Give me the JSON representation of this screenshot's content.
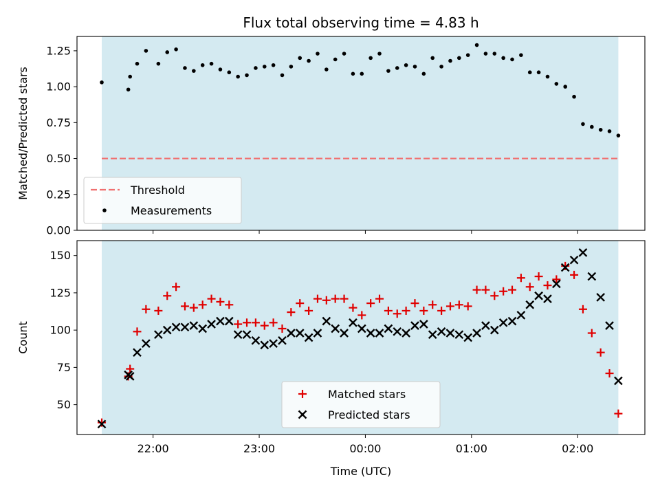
{
  "colors": {
    "span": "#d4eaf1",
    "threshold": "#f07070",
    "measurement": "#000000",
    "matched": "#e00000",
    "predicted": "#000000"
  },
  "chart_data": [
    {
      "type": "scatter",
      "title": "Flux total observing time = 4.83 h",
      "xlabel": "",
      "ylabel": "Matched/Predicted stars",
      "x_unit": "UTC",
      "xlim": [
        "21:17",
        "02:38"
      ],
      "ylim": [
        0,
        1.35
      ],
      "yticks": [
        0.0,
        0.25,
        0.5,
        0.75,
        1.0,
        1.25
      ],
      "ytick_labels": [
        "0.00",
        "0.25",
        "0.50",
        "0.75",
        "1.00",
        "1.25"
      ],
      "xticks": [
        "22:00",
        "23:00",
        "00:00",
        "01:00",
        "02:00"
      ],
      "grid": false,
      "legend": "lower-left",
      "observing_span": [
        "21:31",
        "02:23"
      ],
      "threshold": {
        "name": "Threshold",
        "value": 0.5
      },
      "series": [
        {
          "name": "Measurements",
          "x": [
            "21:31",
            "21:46",
            "21:47",
            "21:51",
            "21:56",
            "22:03",
            "22:08",
            "22:13",
            "22:18",
            "22:23",
            "22:28",
            "22:33",
            "22:38",
            "22:43",
            "22:48",
            "22:53",
            "22:58",
            "23:03",
            "23:08",
            "23:13",
            "23:18",
            "23:23",
            "23:28",
            "23:33",
            "23:38",
            "23:43",
            "23:48",
            "23:53",
            "23:58",
            "00:03",
            "00:08",
            "00:13",
            "00:18",
            "00:23",
            "00:28",
            "00:33",
            "00:38",
            "00:43",
            "00:48",
            "00:53",
            "00:58",
            "01:03",
            "01:08",
            "01:13",
            "01:18",
            "01:23",
            "01:28",
            "01:33",
            "01:38",
            "01:43",
            "01:48",
            "01:53",
            "01:58",
            "02:03",
            "02:08",
            "02:13",
            "02:18",
            "02:23"
          ],
          "y": [
            1.03,
            0.98,
            1.07,
            1.16,
            1.25,
            1.16,
            1.24,
            1.26,
            1.13,
            1.11,
            1.15,
            1.16,
            1.12,
            1.1,
            1.07,
            1.08,
            1.13,
            1.14,
            1.15,
            1.08,
            1.14,
            1.2,
            1.18,
            1.23,
            1.12,
            1.19,
            1.23,
            1.09,
            1.09,
            1.2,
            1.23,
            1.11,
            1.13,
            1.15,
            1.14,
            1.09,
            1.2,
            1.14,
            1.18,
            1.2,
            1.22,
            1.29,
            1.23,
            1.23,
            1.2,
            1.19,
            1.22,
            1.1,
            1.1,
            1.07,
            1.02,
            1.0,
            0.93,
            0.74,
            0.72,
            0.7,
            0.69,
            0.66
          ]
        }
      ]
    },
    {
      "type": "scatter",
      "title": "",
      "xlabel": "Time (UTC)",
      "ylabel": "Count",
      "xlim": [
        "21:17",
        "02:38"
      ],
      "ylim": [
        30,
        160
      ],
      "yticks": [
        50,
        75,
        100,
        125,
        150
      ],
      "xticks": [
        "22:00",
        "23:00",
        "00:00",
        "01:00",
        "02:00"
      ],
      "grid": false,
      "legend": "lower-center",
      "observing_span": [
        "21:31",
        "02:23"
      ],
      "series": [
        {
          "name": "Matched stars",
          "marker": "plus",
          "x": [
            "21:31",
            "21:46",
            "21:47",
            "21:51",
            "21:56",
            "22:03",
            "22:08",
            "22:13",
            "22:18",
            "22:23",
            "22:28",
            "22:33",
            "22:38",
            "22:43",
            "22:48",
            "22:53",
            "22:58",
            "23:03",
            "23:08",
            "23:13",
            "23:18",
            "23:23",
            "23:28",
            "23:33",
            "23:38",
            "23:43",
            "23:48",
            "23:53",
            "23:58",
            "00:03",
            "00:08",
            "00:13",
            "00:18",
            "00:23",
            "00:28",
            "00:33",
            "00:38",
            "00:43",
            "00:48",
            "00:53",
            "00:58",
            "01:03",
            "01:08",
            "01:13",
            "01:18",
            "01:23",
            "01:28",
            "01:33",
            "01:38",
            "01:43",
            "01:48",
            "01:53",
            "01:58",
            "02:03",
            "02:08",
            "02:13",
            "02:18",
            "02:23"
          ],
          "y": [
            38,
            69,
            74,
            99,
            114,
            113,
            123,
            129,
            116,
            115,
            117,
            121,
            119,
            117,
            104,
            105,
            105,
            103,
            105,
            101,
            112,
            118,
            113,
            121,
            120,
            121,
            121,
            115,
            110,
            118,
            121,
            113,
            111,
            113,
            118,
            113,
            117,
            113,
            116,
            117,
            116,
            127,
            127,
            123,
            126,
            127,
            135,
            129,
            136,
            130,
            134,
            143,
            137,
            114,
            98,
            85,
            71,
            44
          ]
        },
        {
          "name": "Predicted stars",
          "marker": "x",
          "x": [
            "21:31",
            "21:46",
            "21:47",
            "21:51",
            "21:56",
            "22:03",
            "22:08",
            "22:13",
            "22:18",
            "22:23",
            "22:28",
            "22:33",
            "22:38",
            "22:43",
            "22:48",
            "22:53",
            "22:58",
            "23:03",
            "23:08",
            "23:13",
            "23:18",
            "23:23",
            "23:28",
            "23:33",
            "23:38",
            "23:43",
            "23:48",
            "23:53",
            "23:58",
            "00:03",
            "00:08",
            "00:13",
            "00:18",
            "00:23",
            "00:28",
            "00:33",
            "00:38",
            "00:43",
            "00:48",
            "00:53",
            "00:58",
            "01:03",
            "01:08",
            "01:13",
            "01:18",
            "01:23",
            "01:28",
            "01:33",
            "01:38",
            "01:43",
            "01:48",
            "01:53",
            "01:58",
            "02:03",
            "02:08",
            "02:13",
            "02:18",
            "02:23"
          ],
          "y": [
            37,
            70,
            69,
            85,
            91,
            97,
            100,
            102,
            102,
            103,
            101,
            104,
            106,
            106,
            97,
            97,
            93,
            90,
            91,
            93,
            98,
            98,
            95,
            98,
            106,
            101,
            98,
            105,
            101,
            98,
            98,
            101,
            99,
            98,
            103,
            104,
            97,
            99,
            98,
            97,
            95,
            98,
            103,
            100,
            105,
            106,
            110,
            117,
            123,
            121,
            131,
            142,
            147,
            152,
            136,
            122,
            103,
            66
          ]
        }
      ]
    }
  ]
}
